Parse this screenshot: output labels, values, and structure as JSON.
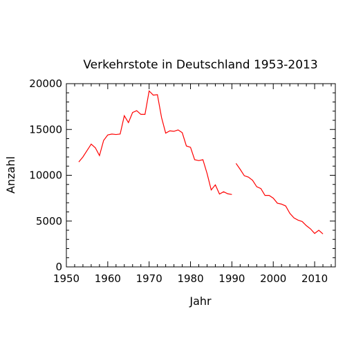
{
  "chart_data": {
    "type": "line",
    "title": "Verkehrstote in Deutschland 1953-2013",
    "xlabel": "Jahr",
    "ylabel": "Anzahl",
    "xlim": [
      1950,
      2015
    ],
    "ylim": [
      0,
      20000
    ],
    "xticks": [
      1950,
      1960,
      1970,
      1980,
      1990,
      2000,
      2010
    ],
    "yticks": [
      0,
      5000,
      10000,
      15000,
      20000
    ],
    "grid": false,
    "series": [
      {
        "color": "#ff0000",
        "segments": [
          {
            "x": [
              1953,
              1954,
              1955,
              1956,
              1957,
              1958,
              1959,
              1960,
              1961,
              1962,
              1963,
              1964,
              1965,
              1966,
              1967,
              1968,
              1969,
              1970,
              1971,
              1972,
              1973,
              1974,
              1975,
              1976,
              1977,
              1978,
              1979,
              1980,
              1981,
              1982,
              1983,
              1984,
              1985,
              1986,
              1987,
              1988,
              1989,
              1990
            ],
            "y": [
              11450,
              12000,
              12700,
              13400,
              13000,
              12150,
              13800,
              14400,
              14500,
              14450,
              14500,
              16500,
              15750,
              16850,
              17050,
              16650,
              16650,
              19200,
              18750,
              18800,
              16300,
              14600,
              14850,
              14800,
              14950,
              14650,
              13200,
              13050,
              11700,
              11600,
              11700,
              10200,
              8400,
              8950,
              7950,
              8200,
              7980,
              7900
            ]
          },
          {
            "x": [
              1991,
              1992,
              1993,
              1994,
              1995,
              1996,
              1997,
              1998,
              1999,
              2000,
              2001,
              2002,
              2003,
              2004,
              2005,
              2006,
              2007,
              2008,
              2009,
              2010,
              2011,
              2012
            ],
            "y": [
              11300,
              10650,
              9950,
              9800,
              9450,
              8750,
              8550,
              7800,
              7800,
              7500,
              6950,
              6850,
              6650,
              5850,
              5350,
              5100,
              4950,
              4500,
              4150,
              3650,
              4000,
              3600
            ]
          }
        ]
      }
    ]
  }
}
